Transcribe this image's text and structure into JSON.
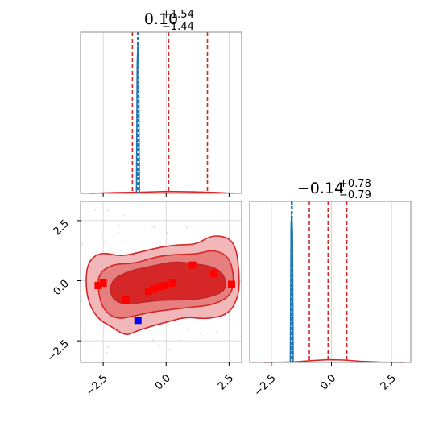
{
  "chart_data": [
    {
      "type": "histogram",
      "panel": "top-left marginal",
      "title": {
        "base": "0.10",
        "sup": "+1.54",
        "sub": "−1.44"
      },
      "xlim": [
        -3.4,
        3.0
      ],
      "xticks": [
        -2.5,
        0.0,
        2.5
      ],
      "grid": true,
      "vlines": {
        "truth": {
          "value": -1.12,
          "color": "#1f77b4",
          "style": "dashed"
        },
        "quantiles": {
          "values": [
            -1.34,
            0.1,
            1.64
          ],
          "color": "#d62728",
          "style": "dashed"
        }
      },
      "histogram_profiles": [
        {
          "name": "blue",
          "color": "#1f77b4",
          "x": [
            -1.18,
            -1.15,
            -1.12,
            -1.09,
            -1.06
          ],
          "density": [
            0.0,
            0.85,
            0.98,
            0.8,
            0.0
          ]
        },
        {
          "name": "red",
          "color": "#d62728",
          "x": [
            -3.0,
            -2.0,
            -1.0,
            0.0,
            1.0,
            2.0,
            2.7
          ],
          "density": [
            0.0,
            0.005,
            0.008,
            0.012,
            0.01,
            0.006,
            0.0
          ]
        }
      ]
    },
    {
      "type": "contour",
      "panel": "bottom-left joint",
      "xlim": [
        -3.4,
        3.0
      ],
      "ylim": [
        -3.4,
        3.3
      ],
      "xticks": [
        "−2.5",
        "0.0",
        "2.5"
      ],
      "yticks": [
        "2.5",
        "0.0",
        "−2.5"
      ],
      "ytick_values": [
        2.5,
        0.0,
        -2.5
      ],
      "grid": true,
      "contour_levels": [
        {
          "level": "outer",
          "fill": "#f2b8b9",
          "stroke": "#d62728",
          "points": [
            [
              -3.1,
              0.8
            ],
            [
              -2.6,
              1.2
            ],
            [
              -1.8,
              1.0
            ],
            [
              -1.0,
              1.2
            ],
            [
              -0.2,
              1.4
            ],
            [
              0.5,
              1.5
            ],
            [
              1.2,
              1.5
            ],
            [
              1.8,
              1.9
            ],
            [
              2.5,
              1.8
            ],
            [
              2.8,
              1.3
            ],
            [
              2.9,
              0.3
            ],
            [
              2.9,
              -0.6
            ],
            [
              2.5,
              -1.4
            ],
            [
              1.6,
              -1.6
            ],
            [
              0.8,
              -1.5
            ],
            [
              0.1,
              -1.7
            ],
            [
              -0.6,
              -1.9
            ],
            [
              -1.2,
              -2.1
            ],
            [
              -1.6,
              -2.3
            ],
            [
              -2.2,
              -1.9
            ],
            [
              -2.7,
              -1.6
            ],
            [
              -3.1,
              -0.9
            ],
            [
              -3.2,
              0.0
            ]
          ]
        },
        {
          "level": "middle",
          "fill": "#e77f7f",
          "stroke": "#d62728",
          "points": [
            [
              -2.7,
              0.3
            ],
            [
              -2.1,
              0.7
            ],
            [
              -1.3,
              0.7
            ],
            [
              -0.4,
              1.0
            ],
            [
              0.4,
              1.1
            ],
            [
              1.2,
              1.1
            ],
            [
              1.9,
              1.3
            ],
            [
              2.5,
              1.0
            ],
            [
              2.7,
              0.2
            ],
            [
              2.6,
              -0.6
            ],
            [
              1.9,
              -1.0
            ],
            [
              1.0,
              -1.1
            ],
            [
              0.2,
              -1.2
            ],
            [
              -0.6,
              -1.3
            ],
            [
              -1.4,
              -1.5
            ],
            [
              -2.0,
              -1.6
            ],
            [
              -2.5,
              -1.2
            ],
            [
              -2.7,
              -0.5
            ]
          ]
        },
        {
          "level": "inner",
          "fill": "#d62728",
          "stroke": "#c0262a",
          "points": [
            [
              -2.2,
              0.0
            ],
            [
              -1.5,
              0.4
            ],
            [
              -0.6,
              0.6
            ],
            [
              0.3,
              0.8
            ],
            [
              1.1,
              0.7
            ],
            [
              1.8,
              0.6
            ],
            [
              2.3,
              0.3
            ],
            [
              2.4,
              -0.4
            ],
            [
              1.7,
              -0.7
            ],
            [
              0.8,
              -0.8
            ],
            [
              -0.2,
              -0.8
            ],
            [
              -1.0,
              -0.9
            ],
            [
              -1.7,
              -1.0
            ],
            [
              -2.2,
              -0.7
            ]
          ]
        }
      ],
      "markers": {
        "red": {
          "color": "#ff0000",
          "points": [
            [
              -2.7,
              -0.2
            ],
            [
              -2.5,
              -0.1
            ],
            [
              -1.6,
              -0.8
            ],
            [
              -0.7,
              -0.45
            ],
            [
              -0.5,
              -0.35
            ],
            [
              -0.3,
              -0.25
            ],
            [
              -0.05,
              -0.2
            ],
            [
              0.25,
              -0.1
            ],
            [
              1.05,
              0.65
            ],
            [
              1.9,
              0.3
            ],
            [
              2.6,
              -0.15
            ]
          ]
        },
        "blue": {
          "color": "#0000ff",
          "points": [
            [
              -1.12,
              -1.65
            ]
          ]
        }
      }
    },
    {
      "type": "histogram",
      "panel": "bottom-right marginal",
      "title": {
        "base": "−0.14",
        "sup": "+0.78",
        "sub": "−0.79"
      },
      "xlim": [
        -3.4,
        3.3
      ],
      "xticks": [
        "−2.5",
        "0.0",
        "2.5"
      ],
      "xtick_values": [
        -2.5,
        0.0,
        2.5
      ],
      "grid": true,
      "vlines": {
        "truth": {
          "value": -1.65,
          "color": "#1f77b4",
          "style": "dashed"
        },
        "quantiles": {
          "values": [
            -0.92,
            -0.14,
            0.64
          ],
          "color": "#d62728",
          "style": "dashed"
        }
      },
      "histogram_profiles": [
        {
          "name": "blue",
          "color": "#1f77b4",
          "x": [
            -1.71,
            -1.68,
            -1.65,
            -1.62,
            -1.59
          ],
          "density": [
            0.0,
            0.9,
            0.97,
            0.85,
            0.0
          ]
        },
        {
          "name": "red",
          "color": "#d62728",
          "x": [
            -2.8,
            -1.6,
            -0.8,
            -0.14,
            0.5,
            1.2,
            2.0,
            3.0
          ],
          "density": [
            0.0,
            0.003,
            0.012,
            0.018,
            0.016,
            0.008,
            0.002,
            0.0
          ]
        }
      ]
    }
  ]
}
